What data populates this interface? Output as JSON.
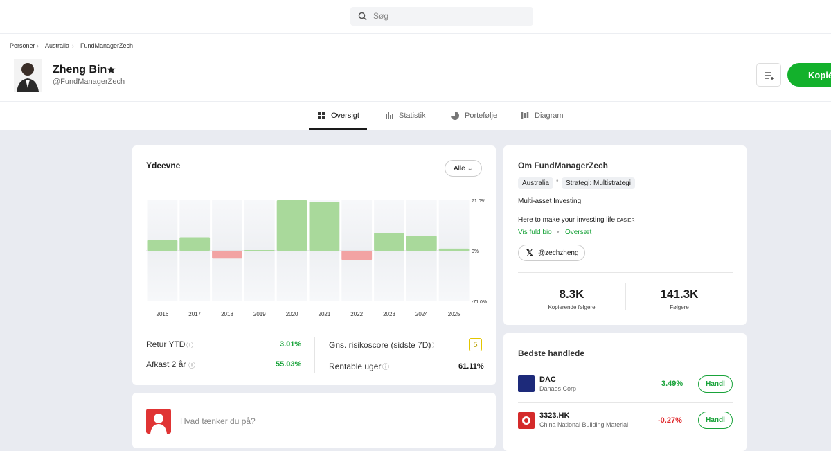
{
  "search": {
    "placeholder": "Søg"
  },
  "breadcrumb": [
    "Personer",
    "Australia",
    "FundManagerZech"
  ],
  "profile": {
    "name": "Zheng Bin",
    "handle": "@FundManagerZech",
    "copy_button": "Kopiér"
  },
  "tabs": [
    "Oversigt",
    "Statistik",
    "Portefølje",
    "Diagram"
  ],
  "performance": {
    "title": "Ydeevne",
    "period": "Alle",
    "categories": [
      "2016",
      "2017",
      "2018",
      "2019",
      "2020",
      "2021",
      "2022",
      "2023",
      "2024",
      "2025"
    ],
    "values": [
      15,
      19,
      -11,
      1,
      71,
      69,
      -13,
      25,
      21,
      3
    ],
    "ylim": [
      -71,
      71
    ],
    "yticks": [
      {
        "value": 71,
        "label": "71.0%"
      },
      {
        "value": 0,
        "label": "0%"
      },
      {
        "value": -71,
        "label": "-71.0%"
      }
    ],
    "positive_color": "#a9d99b",
    "negative_color": "#f2a3a3"
  },
  "stats": [
    {
      "label": "Retur YTD",
      "value": "3.01%"
    },
    {
      "label": "Afkast 2 år",
      "value": "55.03%"
    },
    {
      "label": "Gns. risikoscore (sidste 7D)",
      "value": "5"
    },
    {
      "label": "Rentable uger",
      "value": "61.11%"
    }
  ],
  "about": {
    "title": "Om FundManagerZech",
    "tags": [
      "Australia",
      "Strategi: Multistrategi"
    ],
    "bio_line1": "Multi-asset Investing.",
    "bio_line2": "Here to make your investing life",
    "bio_line2_small": "EASIER",
    "show_bio": "Vis fuld bio",
    "translate": "Oversæt",
    "x_handle": "@zechzheng",
    "copiers_value": "8.3K",
    "copiers_label": "Kopierende følgere",
    "followers_value": "141.3K",
    "followers_label": "Følgere"
  },
  "best_traded": {
    "title": "Bedste handlede",
    "items": [
      {
        "symbol": "DAC",
        "name": "Danaos Corp",
        "change": "3.49%",
        "button": "Handl"
      },
      {
        "symbol": "3323.HK",
        "name": "China National Building Material",
        "change": "-0.27%",
        "button": "Handl"
      }
    ]
  },
  "post": {
    "placeholder": "Hvad tænker du på?"
  }
}
